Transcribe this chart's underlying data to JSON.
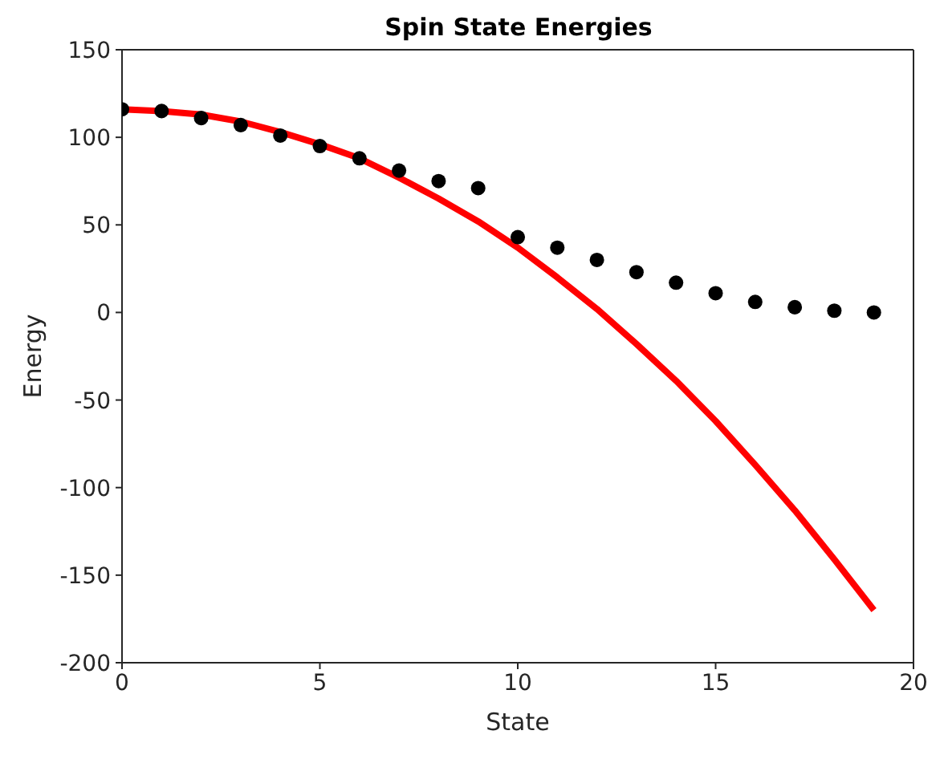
{
  "chart_data": {
    "type": "scatter",
    "title": "Spin State Energies",
    "xlabel": "State",
    "ylabel": "Energy",
    "xlim": [
      0,
      20
    ],
    "xticks": [
      0,
      5,
      10,
      15,
      20
    ],
    "ylim": [
      -200,
      150
    ],
    "yticks": [
      -200,
      -150,
      -100,
      -50,
      0,
      50,
      100,
      150
    ],
    "series": [
      {
        "marker": "circle",
        "color": "#000000",
        "x": [
          0,
          1,
          2,
          3,
          4,
          5,
          6,
          7,
          8,
          9,
          10,
          11,
          12,
          13,
          14,
          15,
          16,
          17,
          18,
          19
        ],
        "values": [
          116,
          115,
          111,
          107,
          101,
          95,
          88,
          81,
          75,
          71,
          43,
          37,
          30,
          23,
          17,
          11,
          6,
          3,
          1,
          0
        ]
      },
      {
        "type": "line",
        "color": "#ff0000",
        "line_style": "solid",
        "x": [
          0,
          1,
          2,
          3,
          4,
          5,
          6,
          7,
          8,
          9,
          10,
          11,
          12,
          13,
          14,
          15,
          16,
          17,
          18,
          19
        ],
        "values": [
          116,
          115,
          113,
          109,
          103,
          96,
          88,
          77,
          65,
          52,
          37,
          20,
          2,
          -18,
          -39,
          -62,
          -87,
          -113,
          -141,
          -170
        ]
      }
    ]
  }
}
